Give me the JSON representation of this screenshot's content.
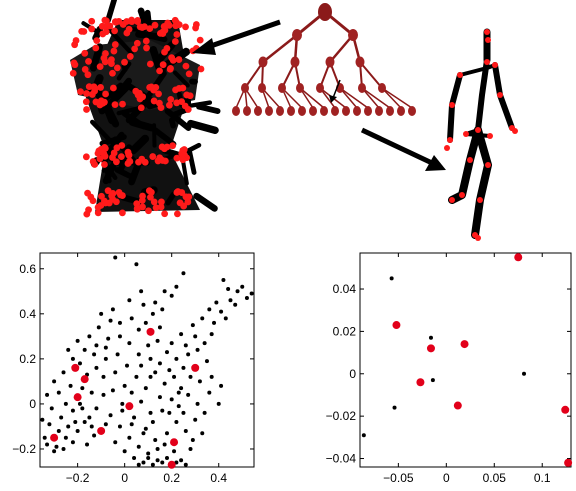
{
  "colors": {
    "point_black": "#000000",
    "point_red": "#e2001a",
    "tree_dark": "#8b1a1a",
    "tree_mid": "#a02222",
    "cluster_red": "#ff1a1a",
    "arrow": "#000000"
  },
  "chart_data": [
    {
      "type": "scatter",
      "panel": "bottom-left",
      "xlim": [
        -0.36,
        0.55
      ],
      "ylim": [
        -0.28,
        0.67
      ],
      "xticks": [
        -0.2,
        0,
        0.2,
        0.4
      ],
      "xtick_labels": [
        "−0.2",
        "0",
        "0.2",
        "0.4"
      ],
      "yticks": [
        -0.2,
        0,
        0.2,
        0.4,
        0.6
      ],
      "ytick_labels": [
        "−0.2",
        "0",
        "0.2",
        "0.4",
        "0.6"
      ],
      "series": [
        {
          "color": "#e2001a",
          "marker": "large-dot",
          "points": [
            [
              0.11,
              0.32
            ],
            [
              -0.21,
              0.16
            ],
            [
              0.3,
              0.16
            ],
            [
              -0.17,
              0.11
            ],
            [
              -0.2,
              0.03
            ],
            [
              0.02,
              -0.01
            ],
            [
              -0.1,
              -0.12
            ],
            [
              0.21,
              -0.17
            ],
            [
              -0.3,
              -0.15
            ],
            [
              0.2,
              -0.27
            ]
          ]
        },
        {
          "color": "#000000",
          "marker": "small-dot",
          "points": [
            [
              -0.04,
              0.65
            ],
            [
              0.05,
              0.62
            ],
            [
              0.25,
              0.58
            ],
            [
              0.42,
              0.55
            ],
            [
              0.44,
              0.51
            ],
            [
              0.48,
              0.5
            ],
            [
              0.52,
              0.47
            ],
            [
              0.39,
              0.45
            ],
            [
              0.36,
              0.42
            ],
            [
              0.33,
              0.38
            ],
            [
              0.29,
              0.35
            ],
            [
              0.45,
              0.46
            ],
            [
              0.5,
              0.52
            ],
            [
              0.54,
              0.49
            ],
            [
              0.2,
              0.48
            ],
            [
              0.16,
              0.42
            ],
            [
              0.12,
              0.4
            ],
            [
              0.08,
              0.44
            ],
            [
              0.02,
              0.46
            ],
            [
              -0.02,
              0.36
            ],
            [
              0.06,
              0.33
            ],
            [
              0.14,
              0.28
            ],
            [
              0.18,
              0.23
            ],
            [
              0.22,
              0.2
            ],
            [
              0.26,
              0.26
            ],
            [
              0.31,
              0.24
            ],
            [
              0.35,
              0.19
            ],
            [
              0.28,
              0.12
            ],
            [
              0.24,
              0.07
            ],
            [
              0.2,
              0.02
            ],
            [
              0.16,
              -0.03
            ],
            [
              0.12,
              -0.08
            ],
            [
              0.08,
              -0.13
            ],
            [
              0.04,
              -0.06
            ],
            [
              0.0,
              0.08
            ],
            [
              -0.04,
              0.14
            ],
            [
              -0.08,
              0.2
            ],
            [
              -0.12,
              0.26
            ],
            [
              -0.15,
              0.3
            ],
            [
              -0.11,
              0.34
            ],
            [
              -0.07,
              0.29
            ],
            [
              -0.03,
              0.22
            ],
            [
              0.01,
              0.17
            ],
            [
              0.05,
              0.12
            ],
            [
              0.09,
              0.07
            ],
            [
              0.13,
              0.14
            ],
            [
              0.17,
              0.09
            ],
            [
              0.21,
              0.12
            ],
            [
              0.25,
              0.16
            ],
            [
              0.32,
              0.1
            ],
            [
              0.36,
              0.05
            ],
            [
              0.4,
              0.0
            ],
            [
              -0.22,
              0.2
            ],
            [
              -0.26,
              0.14
            ],
            [
              -0.3,
              0.1
            ],
            [
              -0.33,
              0.04
            ],
            [
              -0.31,
              -0.02
            ],
            [
              -0.27,
              -0.06
            ],
            [
              -0.24,
              -0.1
            ],
            [
              -0.28,
              -0.12
            ],
            [
              -0.32,
              -0.09
            ],
            [
              -0.34,
              -0.15
            ],
            [
              -0.29,
              -0.19
            ],
            [
              -0.25,
              -0.15
            ],
            [
              -0.21,
              -0.08
            ],
            [
              -0.18,
              -0.02
            ],
            [
              -0.14,
              0.05
            ],
            [
              -0.16,
              0.13
            ],
            [
              -0.19,
              0.18
            ],
            [
              -0.23,
              0.08
            ],
            [
              -0.19,
              0.0
            ],
            [
              -0.15,
              -0.06
            ],
            [
              -0.12,
              -0.02
            ],
            [
              -0.09,
              0.04
            ],
            [
              -0.06,
              -0.05
            ],
            [
              -0.02,
              -0.1
            ],
            [
              0.02,
              -0.15
            ],
            [
              0.06,
              -0.19
            ],
            [
              0.1,
              -0.22
            ],
            [
              0.14,
              -0.2
            ],
            [
              0.18,
              -0.13
            ],
            [
              0.22,
              -0.08
            ],
            [
              0.26,
              -0.12
            ],
            [
              0.28,
              -0.2
            ],
            [
              0.24,
              -0.25
            ],
            [
              0.16,
              -0.26
            ],
            [
              0.12,
              -0.27
            ],
            [
              0.08,
              -0.26
            ],
            [
              0.1,
              -0.24
            ],
            [
              0.14,
              -0.25
            ],
            [
              0.18,
              -0.24
            ],
            [
              0.22,
              -0.26
            ],
            [
              0.26,
              -0.27
            ],
            [
              0.06,
              -0.27
            ],
            [
              0.03,
              -0.09
            ],
            [
              -0.01,
              -0.03
            ],
            [
              0.07,
              0.01
            ],
            [
              0.11,
              -0.04
            ],
            [
              0.15,
              0.03
            ],
            [
              0.19,
              -0.04
            ],
            [
              0.23,
              -0.01
            ],
            [
              0.27,
              0.04
            ],
            [
              0.31,
              0.0
            ],
            [
              0.34,
              -0.04
            ],
            [
              0.3,
              -0.07
            ],
            [
              0.33,
              -0.13
            ],
            [
              0.29,
              -0.16
            ],
            [
              0.25,
              -0.04
            ],
            [
              0.2,
              0.27
            ],
            [
              0.24,
              0.31
            ],
            [
              0.15,
              0.34
            ],
            [
              0.1,
              0.26
            ],
            [
              0.06,
              0.22
            ],
            [
              0.02,
              0.27
            ],
            [
              -0.02,
              0.3
            ],
            [
              -0.06,
              0.37
            ],
            [
              -0.1,
              0.4
            ],
            [
              -0.13,
              0.22
            ],
            [
              -0.09,
              0.12
            ],
            [
              -0.05,
              0.06
            ],
            [
              -0.01,
              0.0
            ],
            [
              0.03,
              0.05
            ],
            [
              0.07,
              0.17
            ],
            [
              0.11,
              0.2
            ],
            [
              -0.35,
              -0.07
            ],
            [
              -0.33,
              -0.18
            ],
            [
              -0.3,
              -0.21
            ],
            [
              -0.26,
              -0.2
            ],
            [
              -0.22,
              -0.17
            ],
            [
              -0.2,
              -0.12
            ],
            [
              -0.17,
              -0.08
            ],
            [
              -0.13,
              -0.14
            ],
            [
              -0.16,
              -0.18
            ],
            [
              -0.08,
              -0.09
            ],
            [
              -0.04,
              -0.17
            ],
            [
              0.0,
              -0.21
            ],
            [
              0.04,
              -0.24
            ],
            [
              0.38,
              0.36
            ],
            [
              0.41,
              0.41
            ],
            [
              0.47,
              0.44
            ],
            [
              0.43,
              0.38
            ],
            [
              0.37,
              0.31
            ],
            [
              0.3,
              0.3
            ],
            [
              0.34,
              0.27
            ],
            [
              0.27,
              0.22
            ],
            [
              0.23,
              0.05
            ],
            [
              0.37,
              0.12
            ],
            [
              0.41,
              0.08
            ],
            [
              -0.24,
              0.24
            ],
            [
              -0.2,
              0.28
            ],
            [
              -0.17,
              0.24
            ],
            [
              -0.12,
              0.16
            ],
            [
              -0.08,
              0.25
            ],
            [
              -0.28,
              0.05
            ],
            [
              -0.25,
              0.0
            ],
            [
              -0.22,
              -0.03
            ],
            [
              -0.18,
              0.07
            ],
            [
              -0.14,
              -0.1
            ],
            [
              0.09,
              -0.11
            ],
            [
              0.13,
              -0.16
            ],
            [
              0.17,
              -0.18
            ],
            [
              0.21,
              -0.21
            ],
            [
              0.11,
              0.12
            ],
            [
              0.15,
              0.18
            ],
            [
              0.19,
              0.15
            ],
            [
              0.03,
              0.38
            ],
            [
              0.09,
              0.36
            ],
            [
              0.13,
              0.45
            ],
            [
              0.17,
              0.5
            ],
            [
              0.22,
              0.52
            ],
            [
              -0.05,
              0.42
            ],
            [
              0.07,
              0.5
            ]
          ]
        }
      ]
    },
    {
      "type": "scatter",
      "panel": "bottom-right",
      "xlim": [
        -0.09,
        0.13
      ],
      "ylim": [
        -0.044,
        0.057
      ],
      "xticks": [
        -0.05,
        0,
        0.05,
        0.1
      ],
      "xtick_labels": [
        "−0.05",
        "0",
        "0.05",
        "0.1"
      ],
      "yticks": [
        -0.04,
        -0.02,
        0,
        0.02,
        0.04
      ],
      "ytick_labels": [
        "−0.04",
        "−0.02",
        "0",
        "0.02",
        "0.04"
      ],
      "series": [
        {
          "color": "#e2001a",
          "marker": "large-dot",
          "points": [
            [
              0.075,
              0.055
            ],
            [
              -0.052,
              0.023
            ],
            [
              -0.016,
              0.012
            ],
            [
              0.019,
              0.014
            ],
            [
              -0.027,
              -0.004
            ],
            [
              0.012,
              -0.015
            ],
            [
              0.124,
              -0.017
            ],
            [
              0.127,
              -0.042
            ]
          ]
        },
        {
          "color": "#000000",
          "marker": "small-dot",
          "points": [
            [
              -0.057,
              0.045
            ],
            [
              -0.016,
              0.017
            ],
            [
              -0.054,
              -0.016
            ],
            [
              -0.014,
              -0.003
            ],
            [
              0.081,
              0.0
            ],
            [
              -0.086,
              -0.029
            ]
          ]
        }
      ]
    }
  ]
}
